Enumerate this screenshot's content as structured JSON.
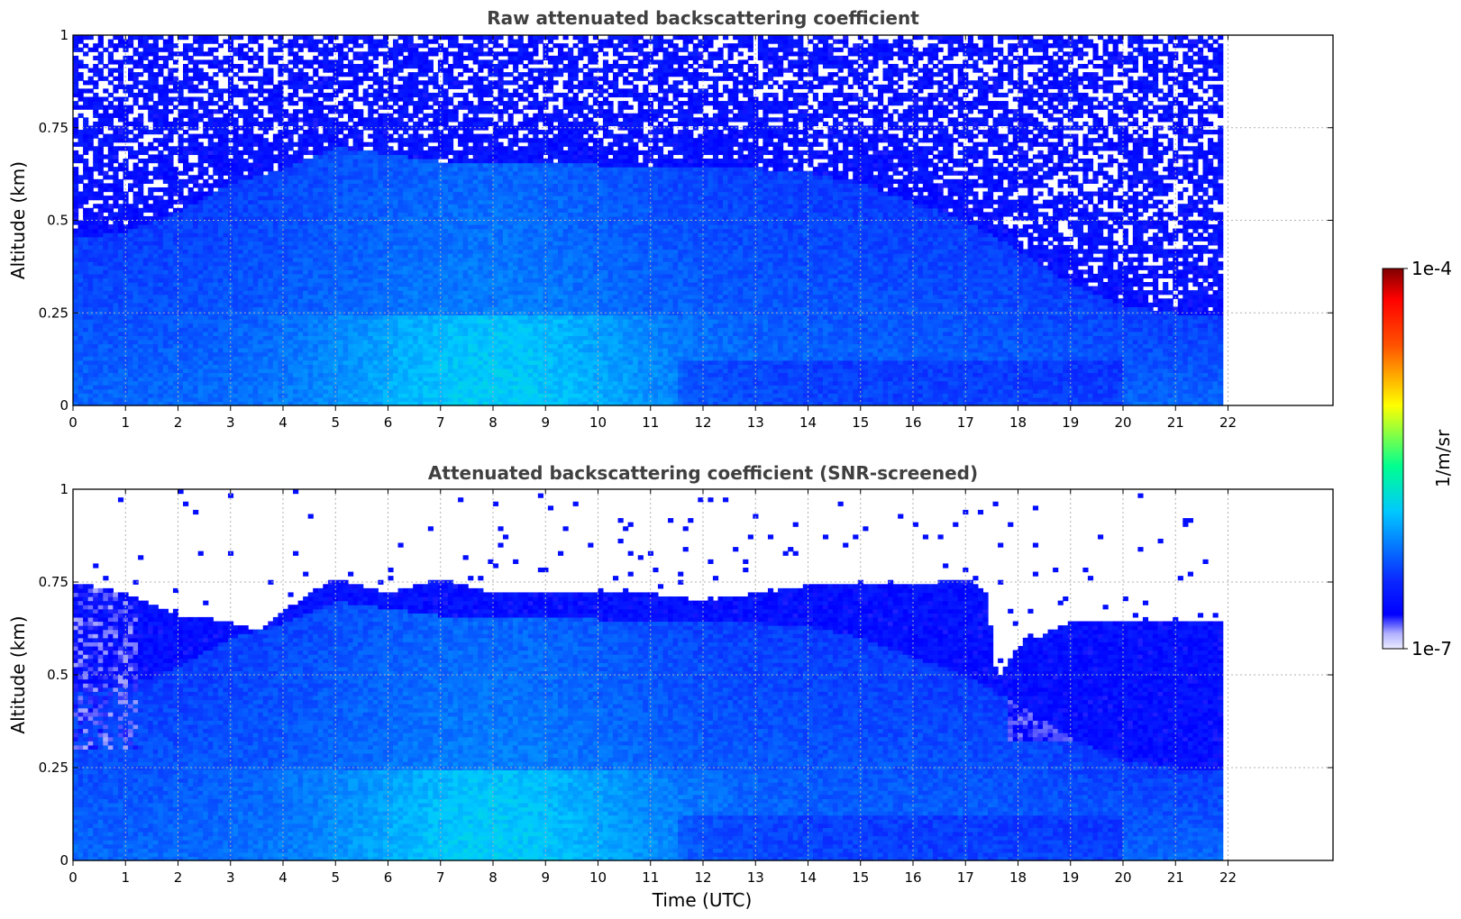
{
  "chart_data": [
    {
      "type": "heatmap",
      "title": "Raw attenuated backscattering coefficient",
      "xlabel": "",
      "ylabel": "Altitude (km)",
      "xlim": [
        0,
        24
      ],
      "ylim": [
        0,
        1
      ],
      "data_x_range": [
        0,
        21.9
      ],
      "x_ticks": [
        "0",
        "1",
        "2",
        "3",
        "4",
        "5",
        "6",
        "7",
        "8",
        "9",
        "10",
        "11",
        "12",
        "13",
        "14",
        "15",
        "16",
        "17",
        "18",
        "19",
        "20",
        "21",
        "22"
      ],
      "y_ticks": [
        "0",
        "0.25",
        "0.5",
        "0.75",
        "1"
      ],
      "grid": true,
      "screened": false,
      "boundary_layer_top_km": [
        [
          0,
          0.45
        ],
        [
          1,
          0.47
        ],
        [
          2,
          0.52
        ],
        [
          3,
          0.6
        ],
        [
          4,
          0.64
        ],
        [
          5,
          0.7
        ],
        [
          6,
          0.68
        ],
        [
          7,
          0.66
        ],
        [
          8,
          0.66
        ],
        [
          9,
          0.66
        ],
        [
          10,
          0.65
        ],
        [
          11,
          0.65
        ],
        [
          12,
          0.64
        ],
        [
          13,
          0.64
        ],
        [
          14,
          0.63
        ],
        [
          15,
          0.6
        ],
        [
          16,
          0.55
        ],
        [
          17,
          0.5
        ],
        [
          18,
          0.42
        ],
        [
          19,
          0.33
        ],
        [
          20,
          0.27
        ],
        [
          21,
          0.25
        ],
        [
          22,
          0.25
        ]
      ]
    },
    {
      "type": "heatmap",
      "title": "Attenuated backscattering coefficient (SNR-screened)",
      "xlabel": "Time (UTC)",
      "ylabel": "Altitude (km)",
      "xlim": [
        0,
        24
      ],
      "ylim": [
        0,
        1
      ],
      "data_x_range": [
        0,
        21.9
      ],
      "x_ticks": [
        "0",
        "1",
        "2",
        "3",
        "4",
        "5",
        "6",
        "7",
        "8",
        "9",
        "10",
        "11",
        "12",
        "13",
        "14",
        "15",
        "16",
        "17",
        "18",
        "19",
        "20",
        "21",
        "22"
      ],
      "y_ticks": [
        "0",
        "0.25",
        "0.5",
        "0.75",
        "1"
      ],
      "grid": true,
      "screened": true,
      "screened_top_km": [
        [
          0,
          0.75
        ],
        [
          1,
          0.72
        ],
        [
          2,
          0.66
        ],
        [
          3,
          0.64
        ],
        [
          3.5,
          0.62
        ],
        [
          4,
          0.67
        ],
        [
          4.5,
          0.72
        ],
        [
          5,
          0.76
        ],
        [
          6,
          0.72
        ],
        [
          7,
          0.76
        ],
        [
          8,
          0.72
        ],
        [
          9,
          0.72
        ],
        [
          10,
          0.72
        ],
        [
          11,
          0.72
        ],
        [
          12,
          0.7
        ],
        [
          13,
          0.72
        ],
        [
          14,
          0.74
        ],
        [
          15,
          0.74
        ],
        [
          16,
          0.74
        ],
        [
          17,
          0.76
        ],
        [
          17.4,
          0.72
        ],
        [
          17.6,
          0.48
        ],
        [
          18,
          0.58
        ],
        [
          19,
          0.64
        ],
        [
          20,
          0.64
        ],
        [
          21,
          0.64
        ],
        [
          22,
          0.64
        ]
      ],
      "boundary_layer_top_km": [
        [
          0,
          0.45
        ],
        [
          1,
          0.47
        ],
        [
          2,
          0.52
        ],
        [
          3,
          0.6
        ],
        [
          4,
          0.64
        ],
        [
          5,
          0.7
        ],
        [
          6,
          0.68
        ],
        [
          7,
          0.66
        ],
        [
          8,
          0.66
        ],
        [
          9,
          0.66
        ],
        [
          10,
          0.65
        ],
        [
          11,
          0.65
        ],
        [
          12,
          0.64
        ],
        [
          13,
          0.64
        ],
        [
          14,
          0.63
        ],
        [
          15,
          0.6
        ],
        [
          16,
          0.55
        ],
        [
          17,
          0.5
        ],
        [
          18,
          0.42
        ],
        [
          19,
          0.33
        ],
        [
          20,
          0.27
        ],
        [
          21,
          0.25
        ],
        [
          22,
          0.25
        ]
      ]
    }
  ],
  "colorbar": {
    "max_label": "1e-4",
    "min_label": "1e-7",
    "unit_label": "1/m/sr",
    "range": [
      1e-07,
      0.0001
    ],
    "scale": "log",
    "colormap": [
      "#e6e6ff",
      "#0000ff",
      "#00ffff",
      "#ffff00",
      "#ff0000",
      "#800000"
    ]
  }
}
